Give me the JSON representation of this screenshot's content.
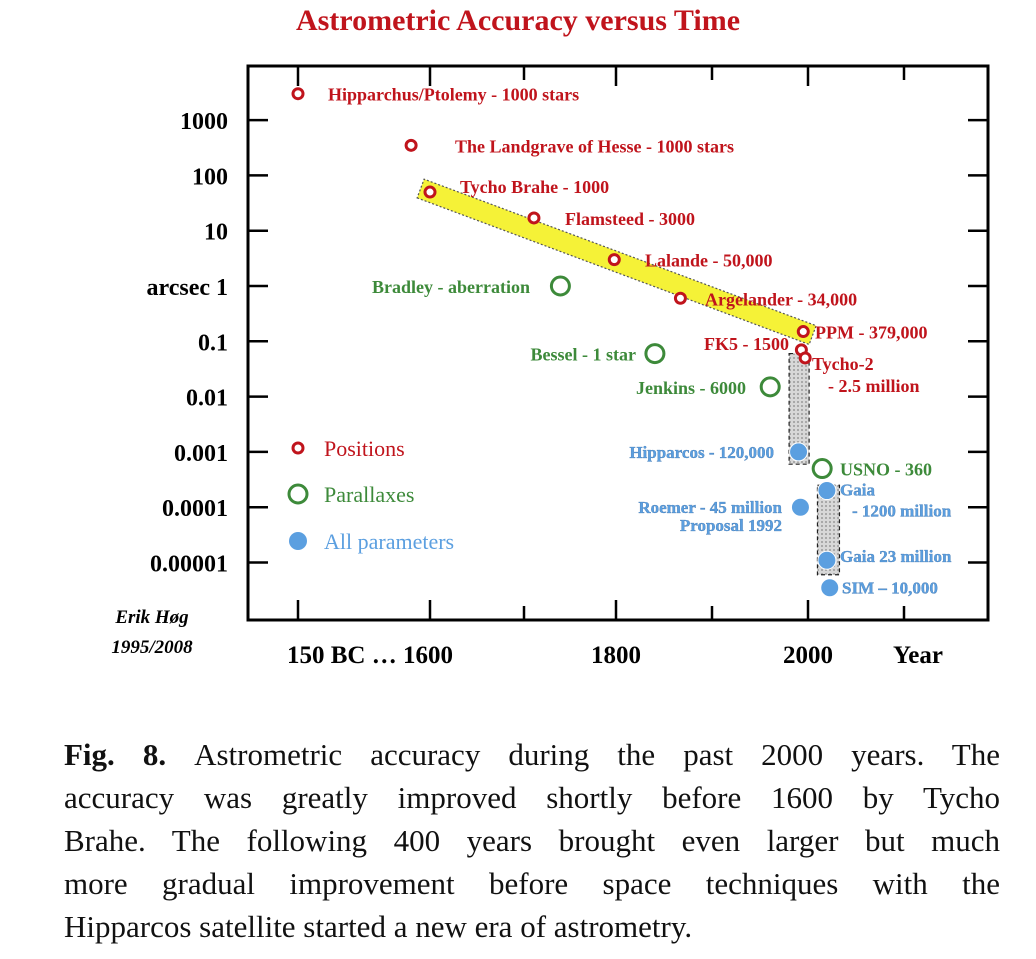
{
  "figure": {
    "title": "Astrometric Accuracy versus Time",
    "caption_label": "Fig. 8.",
    "caption_lines": [
      "Astrometric accuracy during the past 2000 years. The",
      "accuracy was greatly improved shortly before 1600 by Tycho",
      "Brahe. The following 400 years brought even larger but much",
      "more gradual improvement before space techniques with the",
      "Hipparcos satellite started a new era of astrometry."
    ],
    "author": "Erik Høg",
    "author_years": "1995/2008"
  },
  "colors": {
    "positions": "#c0141c",
    "parallaxes": "#3d8a3a",
    "all_parameters": "#5b9fe0",
    "highlight": "#f5f237"
  },
  "chart_data": {
    "type": "scatter",
    "title": "Astrometric Accuracy versus Time",
    "xlabel": "Year",
    "ylabel": "arcsec",
    "y_scale": "log",
    "x_tick_labels": [
      "150 BC … 1600",
      "1800",
      "2000",
      "Year"
    ],
    "y_tick_labels": [
      "1000",
      "100",
      "10",
      "arcsec  1",
      "0.1",
      "0.01",
      "0.001",
      "0.0001",
      "0.00001"
    ],
    "y_ticks": [
      1000,
      100,
      10,
      1,
      0.1,
      0.01,
      0.001,
      0.0001,
      1e-05
    ],
    "x_break_note": "x-axis is broken between 150 BC and 1600",
    "legend": [
      {
        "name": "Positions",
        "marker": "small-ring"
      },
      {
        "name": "Parallaxes",
        "marker": "ring"
      },
      {
        "name": "All parameters",
        "marker": "dot"
      }
    ],
    "series": [
      {
        "name": "Positions",
        "points": [
          {
            "x": "150 BC",
            "y": 3000,
            "label": "Hipparchus/Ptolemy - 1000 stars"
          },
          {
            "x": 1580,
            "y": 350,
            "label": "The Landgrave of Hesse - 1000 stars"
          },
          {
            "x": 1600,
            "y": 50,
            "label": "Tycho Brahe - 1000"
          },
          {
            "x": 1710,
            "y": 17,
            "label": "Flamsteed - 3000"
          },
          {
            "x": 1795,
            "y": 3,
            "label": "Lalande - 50,000"
          },
          {
            "x": 1865,
            "y": 0.6,
            "label": "Argelander - 34,000"
          },
          {
            "x": 1995,
            "y": 0.15,
            "label": "PPM - 379,000"
          },
          {
            "x": 1993,
            "y": 0.07,
            "label": "FK5 - 1500"
          },
          {
            "x": 1997,
            "y": 0.05,
            "label": "Tycho-2",
            "label2": "- 2.5 million"
          }
        ]
      },
      {
        "name": "Parallaxes",
        "points": [
          {
            "x": 1738,
            "y": 1,
            "label": "Bradley - aberration"
          },
          {
            "x": 1838,
            "y": 0.06,
            "label": "Bessel - 1 star"
          },
          {
            "x": 1960,
            "y": 0.015,
            "label": "Jenkins - 6000"
          },
          {
            "x": 2015,
            "y": 0.0005,
            "label": "USNO - 360"
          }
        ]
      },
      {
        "name": "All parameters",
        "points": [
          {
            "x": 1990,
            "y": 0.001,
            "label": "Hipparcos - 120,000"
          },
          {
            "x": 1992,
            "y": 0.0001,
            "label": "Roemer - 45 million",
            "label2": "Proposal 1992"
          },
          {
            "x": 2020,
            "y": 0.0002,
            "label": "Gaia",
            "label2": "- 1200 million"
          },
          {
            "x": 2020,
            "y": 1.1e-05,
            "label": "Gaia 23 million"
          },
          {
            "x": 2023,
            "y": 3.5e-06,
            "label": "SIM – 10,000"
          }
        ]
      }
    ],
    "annotations": [
      {
        "type": "band",
        "color": "yellow",
        "from": "Tycho Brahe",
        "to": "PPM"
      },
      {
        "type": "box",
        "fill": "grey",
        "from": "FK5 / Tycho-2",
        "to": "Hipparcos"
      },
      {
        "type": "box",
        "fill": "grey",
        "from": "Gaia",
        "to": "Gaia 23 million"
      }
    ]
  }
}
